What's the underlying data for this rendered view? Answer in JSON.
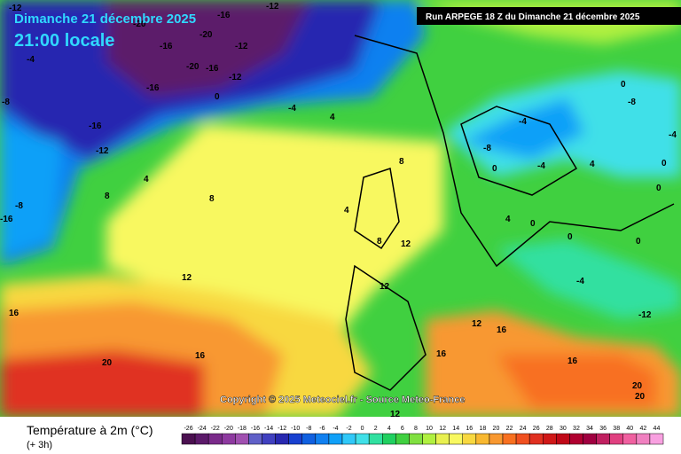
{
  "header": {
    "date": "Dimanche 21 décembre 2025",
    "time": "21:00 locale",
    "run": "Run ARPEGE 18 Z du Dimanche 21 décembre 2025"
  },
  "copyright": "Copyright © 2025 Meteociel.fr - Source Meteo-France",
  "legend": {
    "title": "Température à 2m (°C)",
    "step": "(+ 3h)",
    "values": [
      -26,
      -24,
      -22,
      -20,
      -18,
      -16,
      -14,
      -12,
      -10,
      -8,
      -6,
      -4,
      -2,
      0,
      2,
      4,
      6,
      8,
      10,
      12,
      14,
      16,
      18,
      20,
      22,
      24,
      26,
      28,
      30,
      32,
      34,
      36,
      38,
      40,
      42,
      44
    ],
    "colors": [
      "#4b1050",
      "#5c1a6a",
      "#7a2a8a",
      "#8e3aa0",
      "#a050b0",
      "#6060c8",
      "#4040c0",
      "#2828b0",
      "#1840d0",
      "#1060e0",
      "#1080f0",
      "#10a0f8",
      "#30c8f8",
      "#40e0e8",
      "#30e0a0",
      "#20d060",
      "#40d040",
      "#80e040",
      "#b0f040",
      "#e8f050",
      "#f8f860",
      "#f8d840",
      "#f8b830",
      "#f89830",
      "#f87020",
      "#f05020",
      "#e03020",
      "#d01818",
      "#c00818",
      "#b00030",
      "#a00040",
      "#c02060",
      "#e04080",
      "#f060a0",
      "#f080c0",
      "#f8a0e0"
    ]
  },
  "map_labels": [
    "-12",
    "-20",
    "-16",
    "-20",
    "-12",
    "-16",
    "-12",
    "-20",
    "-16",
    "-12",
    "-8",
    "-4",
    "-16",
    "-12",
    "-16",
    "-8",
    "-16",
    "0",
    "-4",
    "4",
    "4",
    "8",
    "8",
    "8",
    "4",
    "12",
    "12",
    "16",
    "12",
    "16",
    "20",
    "16",
    "12",
    "16",
    "12",
    "16",
    "20",
    "0",
    "-4",
    "-8",
    "0",
    "4",
    "0",
    "-4",
    "0",
    "0",
    "4",
    "-8",
    "-4",
    "0",
    "-12",
    "-4",
    "0",
    "20",
    "8"
  ]
}
